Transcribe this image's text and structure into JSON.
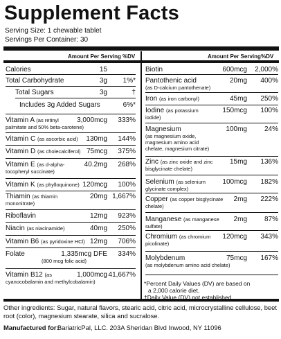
{
  "header": {
    "title": "Supplement Facts",
    "serving_size": "Serving Size: 1 chewable tablet",
    "servings_per_container": "Servings Per Container: 30"
  },
  "columns": {
    "amount": "Amount Per Serving",
    "dv": "%DV"
  },
  "left_rows": [
    {
      "name": "Calories",
      "sub": "",
      "sub2": "",
      "amount": "15",
      "dv": ""
    },
    {
      "name": "Total Carbohydrate",
      "sub": "",
      "sub2": "",
      "amount": "3g",
      "dv": "1%*"
    },
    {
      "name": "Total Sugars",
      "sub": "",
      "sub2": "",
      "amount": "3g",
      "dv": "†"
    },
    {
      "name": "Includes 3g Added Sugars",
      "sub": "",
      "sub2": "",
      "amount": "",
      "dv": "6%*"
    },
    {
      "name": "Vitamin A",
      "sub": "(as retinyl",
      "sub2": "palmitate and 50% beta-carotene)",
      "amount": "3,000mcg",
      "dv": "333%"
    },
    {
      "name": "Vitamin C",
      "sub": "(as ascorbic acid)",
      "sub2": "",
      "amount": "130mg",
      "dv": "144%"
    },
    {
      "name": "Vitamin D",
      "sub": "(as cholecalciferol)",
      "sub2": "",
      "amount": "75mcg",
      "dv": "375%"
    },
    {
      "name": "Vitamin E",
      "sub": "(as d-alpha-",
      "sub2": "tocopheryl succinate)",
      "amount": "40.2mg",
      "dv": "268%"
    },
    {
      "name": "Vitamin K",
      "sub": "(as phylloquinone)",
      "sub2": "",
      "amount": "120mcg",
      "dv": "100%"
    },
    {
      "name": "Thiamin",
      "sub": "(as thiamin",
      "sub2": "mononitrate)",
      "amount": "20mg",
      "dv": "1,667%"
    },
    {
      "name": "Riboflavin",
      "sub": "",
      "sub2": "",
      "amount": "12mg",
      "dv": "923%"
    },
    {
      "name": "Niacin",
      "sub": "(as niacinamide)",
      "sub2": "",
      "amount": "40mg",
      "dv": "250%"
    },
    {
      "name": "Vitamin B6",
      "sub": "(as pyridoxine HCl)",
      "sub2": "",
      "amount": "12mg",
      "dv": "706%"
    },
    {
      "name": "Folate",
      "sub": "",
      "sub2": "(800 mcg folic acid)",
      "amount": "1,335mcg DFE",
      "dv": "334%"
    },
    {
      "name": "Vitamin B12",
      "sub": "(as",
      "sub2": "cyanocobalamin and methylcobalamin)",
      "amount": "1,000mcg",
      "dv": "41,667%"
    }
  ],
  "right_rows": [
    {
      "name": "Biotin",
      "sub": "",
      "sub2": "",
      "sub3": "",
      "amount": "600mcg",
      "dv": "2,000%"
    },
    {
      "name": "Pantothenic acid",
      "sub": "",
      "sub2": "(as D-calcium pantothenate)",
      "sub3": "",
      "amount": "20mg",
      "dv": "400%"
    },
    {
      "name": "Iron",
      "sub": "(as iron carbonyl)",
      "sub2": "",
      "sub3": "",
      "amount": "45mg",
      "dv": "250%"
    },
    {
      "name": "Iodine",
      "sub": "(as potassium",
      "sub2": "iodide)",
      "sub3": "",
      "amount": "150mcg",
      "dv": "100%"
    },
    {
      "name": "Magnesium",
      "sub": "",
      "sub2": "(as magnesium oxide,",
      "sub3": "magnesium amino acid",
      "sub4": "chelate, magnesium citrate)",
      "amount": "100mg",
      "dv": "24%"
    },
    {
      "name": "Zinc",
      "sub": "(as zinc oxide and zinc",
      "sub2": "bisglycinate chelate)",
      "sub3": "",
      "amount": "15mg",
      "dv": "136%"
    },
    {
      "name": "Selenium",
      "sub": "(as selenium",
      "sub2": "glycinate complex)",
      "sub3": "",
      "amount": "100mcg",
      "dv": "182%"
    },
    {
      "name": "Copper",
      "sub": "(as copper bisglycinate",
      "sub2": "chelate)",
      "sub3": "",
      "amount": "2mg",
      "dv": "222%"
    },
    {
      "name": "Manganese",
      "sub": "(as manganese",
      "sub2": "sulfate)",
      "sub3": "",
      "amount": "2mg",
      "dv": "87%"
    },
    {
      "name": "Chromium",
      "sub": "(as chromium",
      "sub2": "picolinate)",
      "sub3": "",
      "amount": "120mcg",
      "dv": "343%"
    },
    {
      "name": "Molybdenum",
      "sub": "",
      "sub2": "(as molybdenum amino acid chelate)",
      "sub3": "",
      "amount": "75mcg",
      "dv": "167%"
    }
  ],
  "footnotes": {
    "line1": "*Percent Daily Values (DV) are based on",
    "line2": "a 2,000 calorie diet.",
    "line3": "†Daily Value (DV) not established."
  },
  "other_ingredients": "Other ingredients: Sugar, natural flavors, stearic acid, citric acid, microcrystalline cellulose, beet root (color), magnesium stearate, silica and sucralose.",
  "manufacturer": {
    "label": "Manufactured for:",
    "value": "BariatricPal, LLC. 203A Sheridan Blvd  Inwood, NY 11096"
  }
}
